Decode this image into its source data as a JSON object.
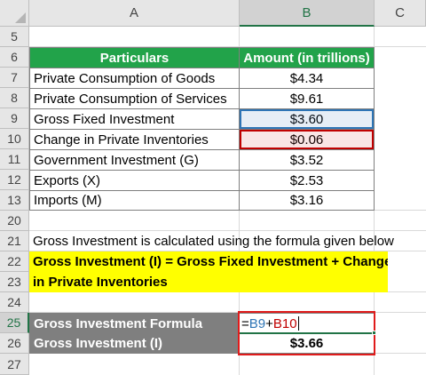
{
  "columns": [
    "A",
    "B",
    "C"
  ],
  "active_column": "B",
  "active_row": "25",
  "rows": [
    "5",
    "6",
    "7",
    "8",
    "9",
    "10",
    "11",
    "12",
    "13",
    "20",
    "21",
    "22",
    "23",
    "24",
    "25",
    "26",
    "27"
  ],
  "table": {
    "header_particulars": "Particulars",
    "header_amount": "Amount (in trillions)",
    "items": [
      {
        "label": "Private Consumption of Goods",
        "amount": "$4.34"
      },
      {
        "label": "Private Consumption of Services",
        "amount": "$9.61"
      },
      {
        "label": "Gross Fixed Investment",
        "amount": "$3.60"
      },
      {
        "label": "Change in Private Inventories",
        "amount": "$0.06"
      },
      {
        "label": "Government Investment (G)",
        "amount": "$3.52"
      },
      {
        "label": "Exports (X)",
        "amount": "$2.53"
      },
      {
        "label": "Imports (M)",
        "amount": "$3.16"
      }
    ]
  },
  "note": "Gross Investment is calculated using the formula given below",
  "formula_text_line1": "Gross Investment (I) = Gross Fixed Investment + Change",
  "formula_text_line2": "in Private Inventories",
  "result": {
    "formula_label": "Gross Investment Formula",
    "formula_eq": "=",
    "formula_ref1": "B9",
    "formula_plus": "+",
    "formula_ref2": "B10",
    "value_label": "Gross Investment (I)",
    "value": "$3.66"
  },
  "colors": {
    "header_green": "#22a34a",
    "highlight_yellow": "#ffff00",
    "ref_blue": "#2e75b6",
    "ref_red": "#c00000",
    "excel_green": "#217346"
  }
}
